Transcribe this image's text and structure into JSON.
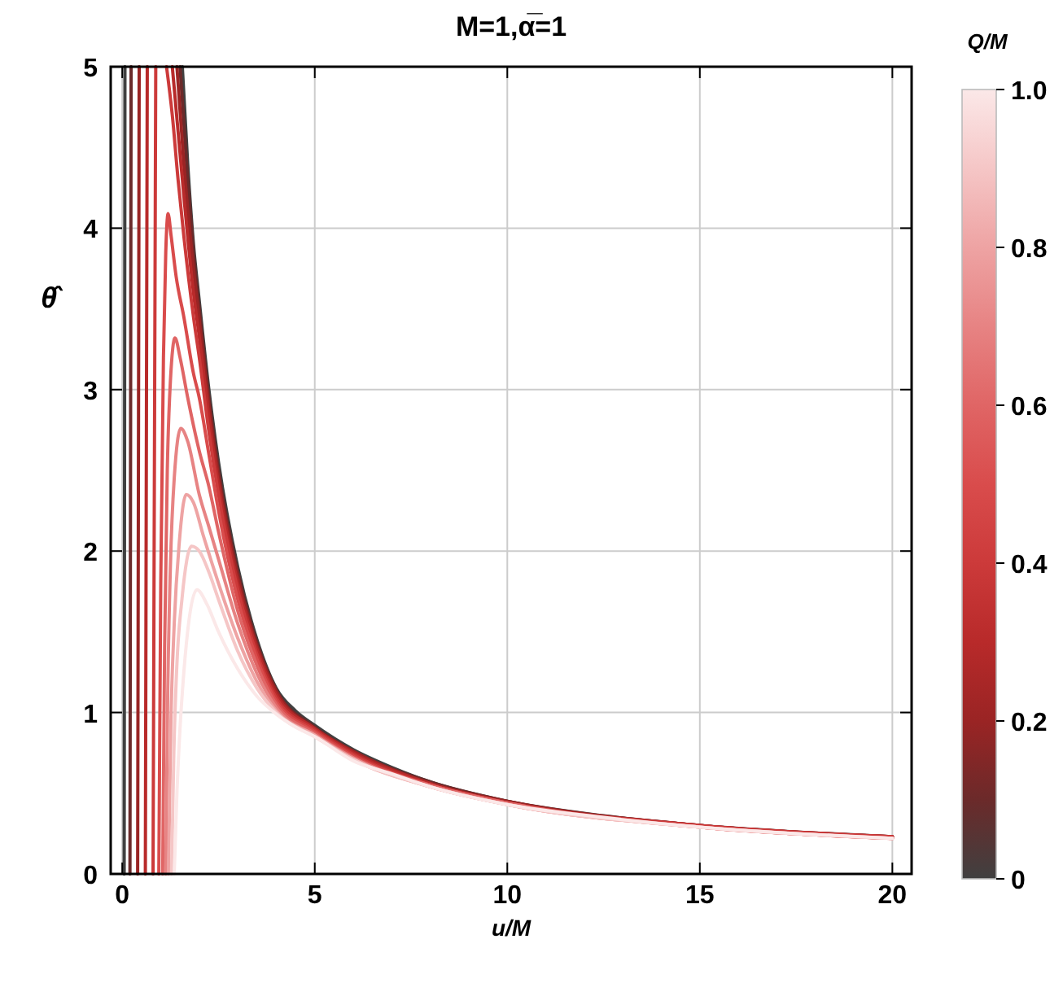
{
  "chart_data": {
    "type": "line",
    "title": "M=1,α̅=1",
    "xlabel": "u/M",
    "ylabel": "θ̂",
    "clabel": "Q/M",
    "xlim": [
      -0.3,
      20.5
    ],
    "ylim": [
      0,
      5
    ],
    "xticks": [
      0,
      5,
      10,
      15,
      20
    ],
    "yticks": [
      0,
      1,
      2,
      3,
      4,
      5
    ],
    "clim": [
      0,
      1
    ],
    "cticks": [
      0,
      0.2,
      0.4,
      0.6,
      0.8,
      {
        "value": 1,
        "label": "1.0"
      }
    ],
    "grid": true,
    "line_style": "solid",
    "series": [
      {
        "color": "#404040",
        "x": [
          1.56,
          1.7,
          1.85,
          2,
          2.25,
          2.5,
          3,
          3.5,
          4,
          4.5,
          5,
          6,
          7,
          8,
          10,
          12.5,
          15,
          17.5,
          20
        ],
        "values": [
          5,
          4.4,
          3.9,
          3.55,
          3.0,
          2.55,
          1.9,
          1.45,
          1.15,
          1.01,
          0.92,
          0.77,
          0.66,
          0.57,
          0.45,
          0.36,
          0.3,
          0.26,
          0.23
        ]
      },
      {
        "color": "#6b2a2a",
        "x": [
          1.5,
          1.7,
          1.85,
          2,
          2.25,
          2.5,
          3,
          3.5,
          4,
          5,
          6,
          8,
          10,
          15,
          20
        ],
        "values": [
          5,
          4.3,
          3.85,
          3.5,
          2.95,
          2.5,
          1.87,
          1.43,
          1.14,
          0.91,
          0.76,
          0.57,
          0.45,
          0.3,
          0.23
        ]
      },
      {
        "color": "#9a2424",
        "x": [
          1.42,
          1.6,
          1.85,
          2,
          2.25,
          2.5,
          3,
          3.5,
          4,
          5,
          6,
          8,
          10,
          15,
          20
        ],
        "values": [
          5,
          4.4,
          3.75,
          3.43,
          2.9,
          2.46,
          1.84,
          1.41,
          1.13,
          0.9,
          0.76,
          0.56,
          0.45,
          0.3,
          0.23
        ]
      },
      {
        "color": "#b82a2a",
        "x": [
          1.3,
          1.45,
          1.6,
          1.85,
          2,
          2.25,
          2.5,
          3,
          3.5,
          4,
          5,
          6,
          8,
          10,
          15,
          20
        ],
        "values": [
          5,
          4.6,
          4.2,
          3.6,
          3.33,
          2.83,
          2.41,
          1.8,
          1.39,
          1.11,
          0.9,
          0.75,
          0.56,
          0.44,
          0.3,
          0.23
        ]
      },
      {
        "color": "#cc3a3a",
        "x": [
          1.15,
          1.3,
          1.45,
          1.6,
          1.85,
          2,
          2.25,
          2.5,
          3,
          3.5,
          4,
          5,
          6,
          8,
          10,
          15,
          20
        ],
        "values": [
          5,
          4.7,
          4.3,
          3.95,
          3.45,
          3.2,
          2.74,
          2.35,
          1.76,
          1.36,
          1.09,
          0.89,
          0.74,
          0.55,
          0.44,
          0.3,
          0.23
        ]
      },
      {
        "color": "#d94c4c",
        "x": [
          0.95,
          1.0,
          1.07,
          1.13,
          1.19,
          1.27,
          1.4,
          1.6,
          1.85,
          2,
          2.25,
          2.5,
          3,
          3.5,
          4,
          5,
          6,
          8,
          10,
          15,
          20
        ],
        "values": [
          0,
          1.8,
          3.2,
          3.85,
          4.09,
          3.95,
          3.7,
          3.45,
          3.1,
          2.95,
          2.6,
          2.25,
          1.7,
          1.33,
          1.07,
          0.88,
          0.73,
          0.55,
          0.44,
          0.29,
          0.22
        ]
      },
      {
        "color": "#e06565",
        "x": [
          1.05,
          1.1,
          1.17,
          1.25,
          1.37,
          1.5,
          1.7,
          2,
          2.25,
          2.5,
          3,
          3.5,
          4,
          5,
          6,
          8,
          10,
          15,
          20
        ],
        "values": [
          0,
          1.4,
          2.5,
          3.05,
          3.32,
          3.2,
          2.95,
          2.62,
          2.4,
          2.12,
          1.63,
          1.29,
          1.05,
          0.87,
          0.72,
          0.55,
          0.44,
          0.29,
          0.22
        ]
      },
      {
        "color": "#e78383",
        "x": [
          1.13,
          1.18,
          1.25,
          1.35,
          1.52,
          1.7,
          2,
          2.25,
          2.5,
          3,
          3.5,
          4,
          5,
          6,
          8,
          10,
          15,
          20
        ],
        "values": [
          0,
          1.1,
          1.9,
          2.45,
          2.76,
          2.68,
          2.35,
          2.15,
          1.95,
          1.55,
          1.24,
          1.03,
          0.86,
          0.72,
          0.54,
          0.43,
          0.29,
          0.22
        ]
      },
      {
        "color": "#eea3a3",
        "x": [
          1.2,
          1.26,
          1.35,
          1.48,
          1.66,
          1.85,
          2.1,
          2.5,
          3,
          3.5,
          4,
          5,
          6,
          8,
          10,
          15,
          20
        ],
        "values": [
          0,
          0.9,
          1.55,
          2.05,
          2.35,
          2.3,
          2.1,
          1.8,
          1.46,
          1.19,
          1.01,
          0.86,
          0.71,
          0.54,
          0.43,
          0.29,
          0.22
        ]
      },
      {
        "color": "#f5c6c6",
        "x": [
          1.28,
          1.34,
          1.42,
          1.55,
          1.8,
          2,
          2.25,
          2.5,
          3,
          3.5,
          4,
          5,
          6,
          8,
          10,
          15,
          20
        ],
        "values": [
          0,
          0.75,
          1.3,
          1.7,
          2.03,
          2.0,
          1.87,
          1.7,
          1.38,
          1.15,
          1.0,
          0.85,
          0.71,
          0.54,
          0.43,
          0.29,
          0.22
        ]
      },
      {
        "color": "#fbe8e8",
        "x": [
          1.35,
          1.42,
          1.5,
          1.6,
          1.75,
          1.94,
          2.2,
          2.5,
          3,
          3.5,
          4,
          4.5,
          5,
          6,
          7,
          8,
          10,
          12.5,
          15,
          17.5,
          20
        ],
        "values": [
          0,
          0.5,
          0.9,
          1.25,
          1.6,
          1.76,
          1.67,
          1.5,
          1.27,
          1.1,
          0.99,
          0.91,
          0.85,
          0.7,
          0.62,
          0.54,
          0.43,
          0.35,
          0.29,
          0.25,
          0.22
        ]
      },
      {
        "color": "#404040",
        "x": [
          0.05,
          0.07
        ],
        "values": [
          0,
          5
        ]
      },
      {
        "color": "#6b2a2a",
        "x": [
          0.2,
          0.23
        ],
        "values": [
          0,
          5
        ]
      },
      {
        "color": "#9a2424",
        "x": [
          0.4,
          0.44
        ],
        "values": [
          0,
          5
        ]
      },
      {
        "color": "#b82a2a",
        "x": [
          0.6,
          0.65
        ],
        "values": [
          0,
          5
        ]
      },
      {
        "color": "#cc3a3a",
        "x": [
          0.8,
          0.87
        ],
        "values": [
          0,
          5
        ]
      }
    ]
  }
}
